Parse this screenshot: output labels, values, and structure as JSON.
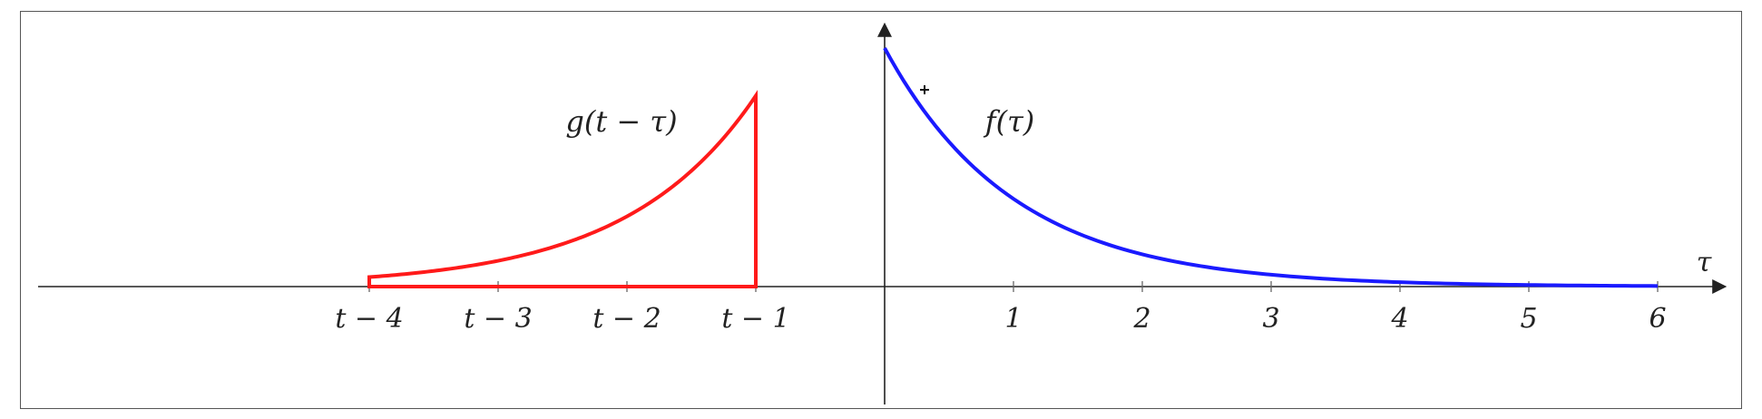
{
  "chart_data": {
    "type": "line",
    "title": "",
    "xlabel": "τ",
    "ylabel": "",
    "grid": false,
    "xlim": [
      -6.75,
      6.5
    ],
    "ylim": [
      -0.55,
      1.1
    ],
    "x_tick_labels": [
      {
        "x": -4,
        "label": "t − 4"
      },
      {
        "x": -3,
        "label": "t − 3"
      },
      {
        "x": -2,
        "label": "t − 2"
      },
      {
        "x": -1,
        "label": "t − 1"
      },
      {
        "x": 1,
        "label": "1"
      },
      {
        "x": 2,
        "label": "2"
      },
      {
        "x": 3,
        "label": "3"
      },
      {
        "x": 4,
        "label": "4"
      },
      {
        "x": 5,
        "label": "5"
      },
      {
        "x": 6,
        "label": "6"
      }
    ],
    "series": [
      {
        "name": "f(τ)",
        "color": "#1a1aff",
        "x": [
          0,
          0.25,
          0.5,
          0.75,
          1,
          1.5,
          2,
          2.5,
          3,
          3.5,
          4,
          4.5,
          5,
          5.5,
          6
        ],
        "y": [
          1,
          0.779,
          0.607,
          0.472,
          0.368,
          0.223,
          0.135,
          0.082,
          0.05,
          0.03,
          0.018,
          0.011,
          0.007,
          0.004,
          0.002
        ]
      },
      {
        "name": "g(t − τ)",
        "color": "#ff1a1a",
        "x": [
          -4,
          -3.5,
          -3,
          -2.5,
          -2,
          -1.5,
          -1
        ],
        "y": [
          0.05,
          0.082,
          0.135,
          0.223,
          0.368,
          0.472,
          0.607
        ],
        "closed_to_axis": true
      }
    ],
    "annotations": [
      {
        "text": "f(τ)",
        "x": 1.0,
        "y": 0.68
      },
      {
        "text": "g(t − τ)",
        "x": -2.0,
        "y": 0.68
      }
    ]
  }
}
